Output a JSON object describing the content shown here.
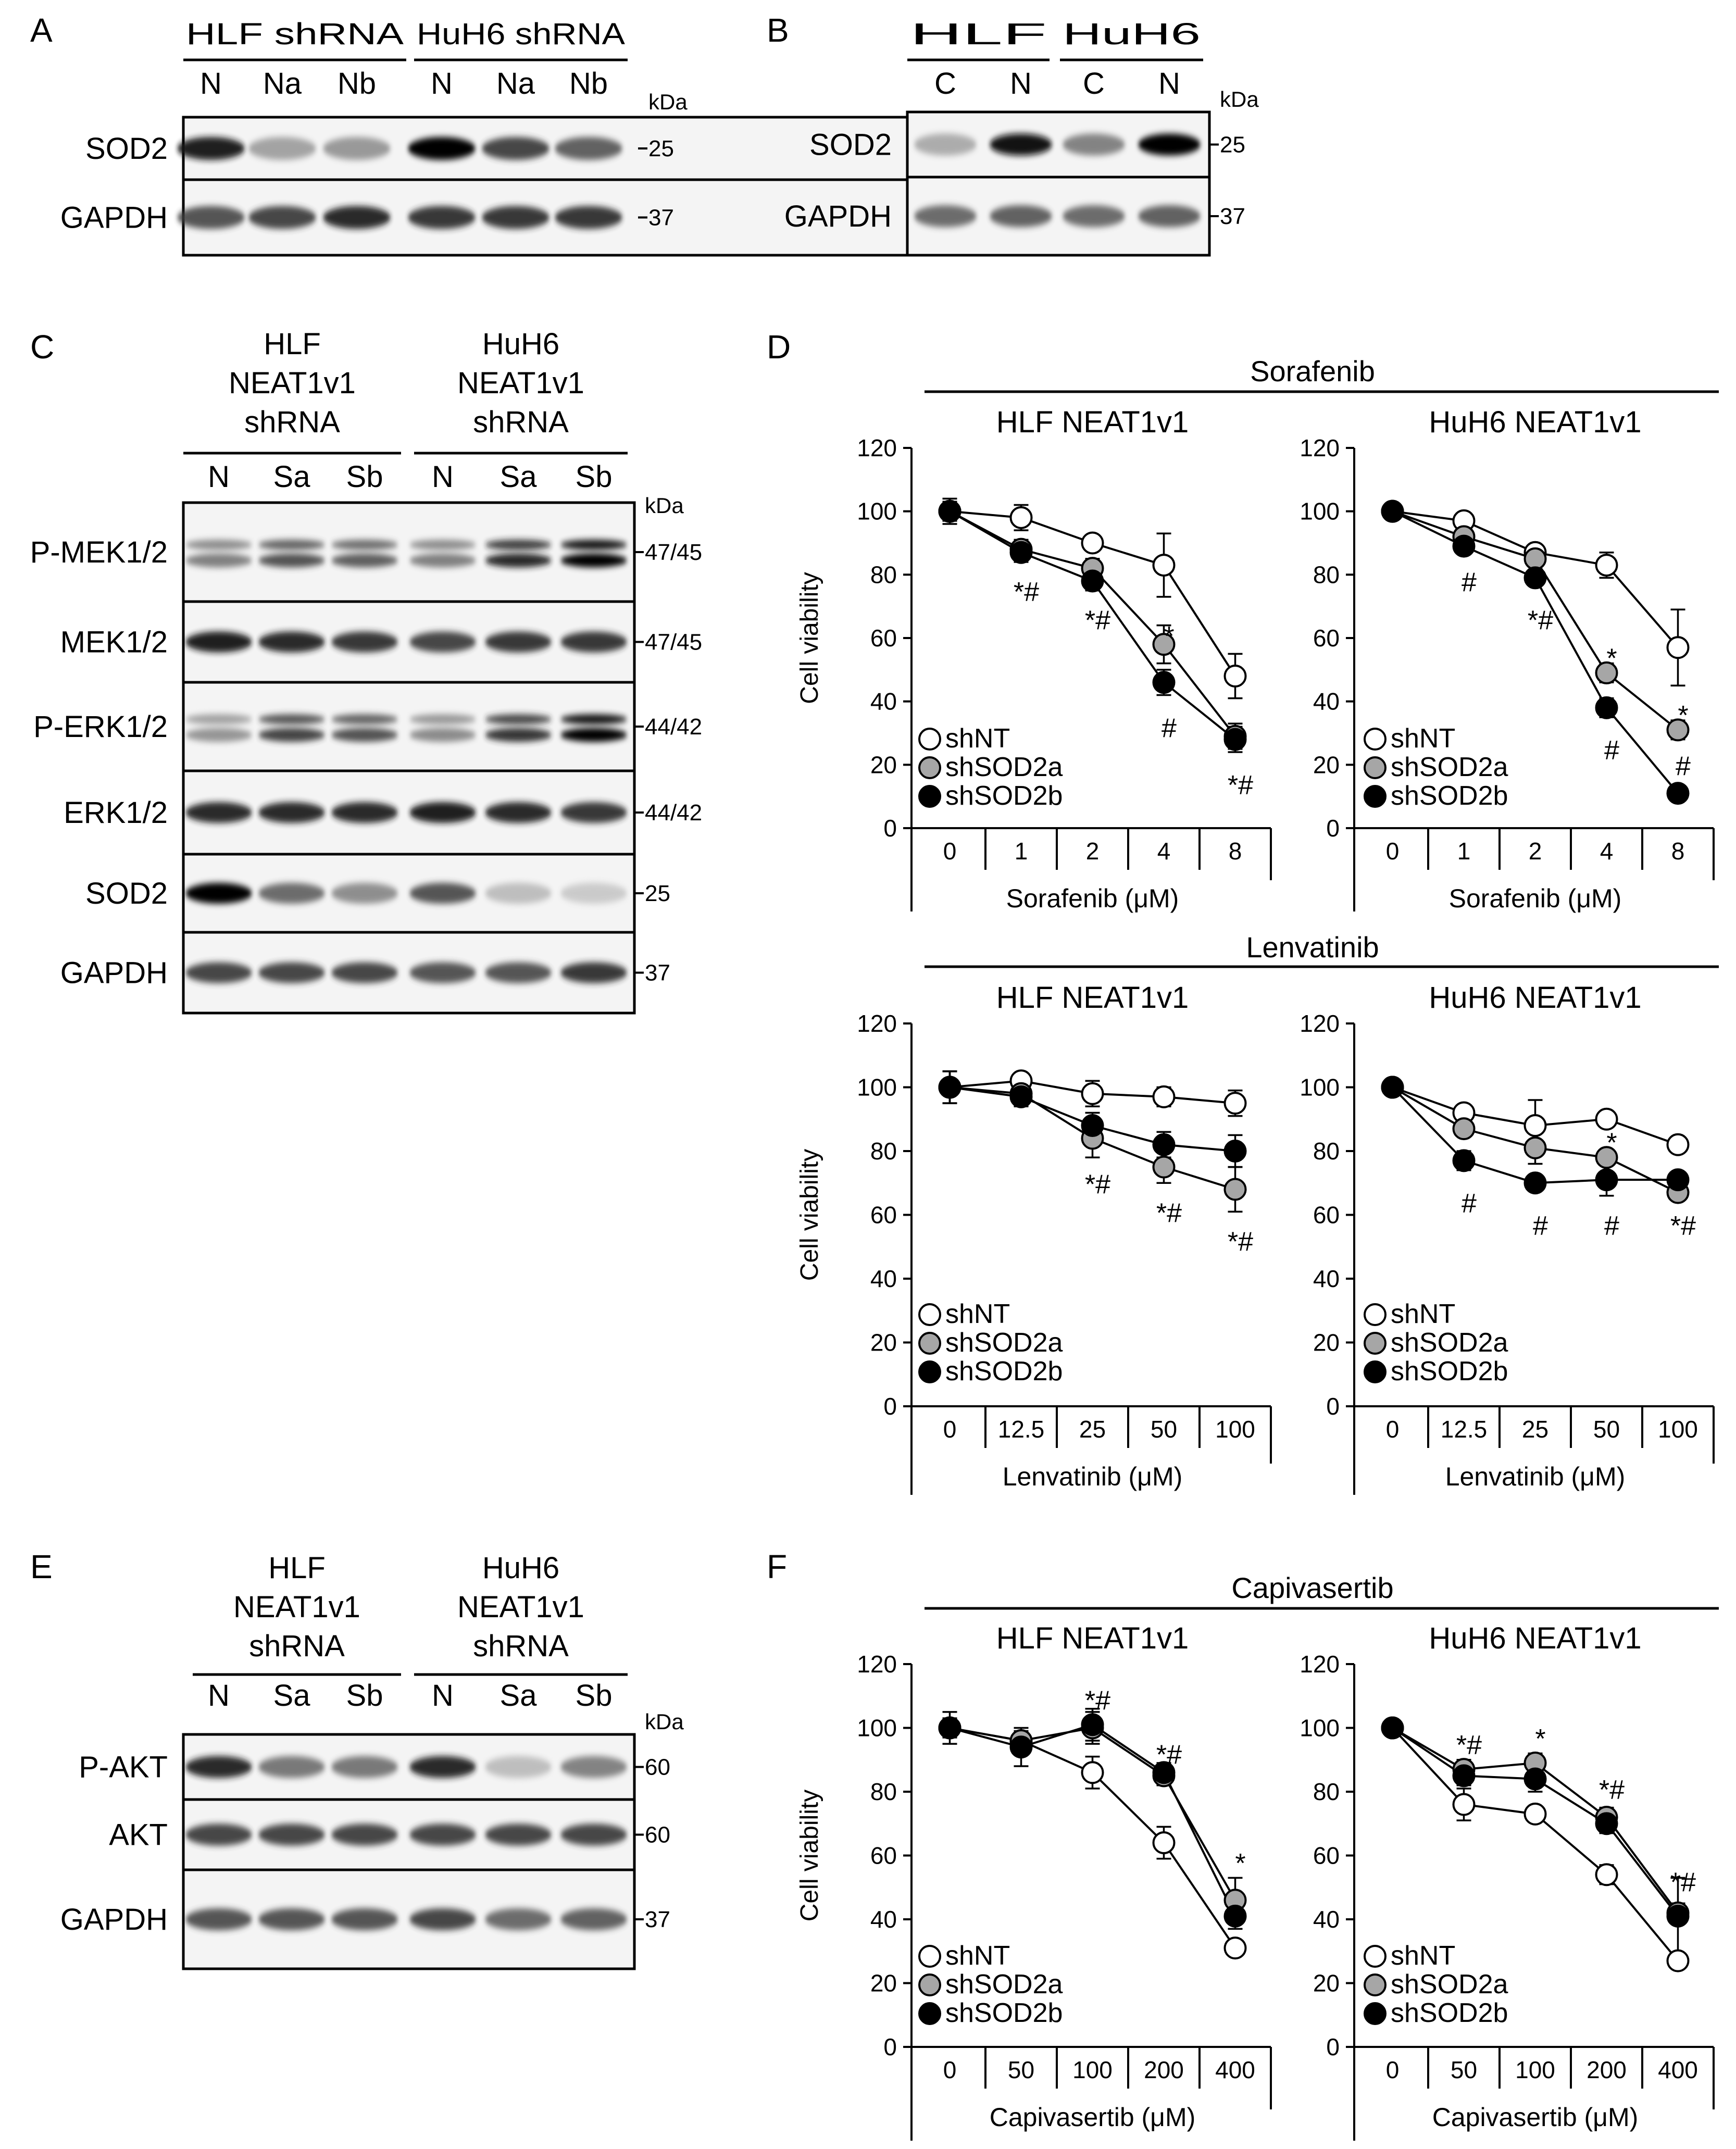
{
  "panels": {
    "A": {
      "letter": "A",
      "groups": [
        "HLF shRNA",
        "HuH6 shRNA"
      ],
      "lanes": [
        "N",
        "Na",
        "Nb",
        "N",
        "Na",
        "Nb"
      ],
      "kda_label": "kDa",
      "blots": [
        {
          "label": "SOD2",
          "kda": "25",
          "intensities": [
            0.9,
            0.35,
            0.4,
            1.0,
            0.75,
            0.65
          ]
        },
        {
          "label": "GAPDH",
          "kda": "37",
          "intensities": [
            0.7,
            0.75,
            0.85,
            0.8,
            0.8,
            0.8
          ]
        }
      ]
    },
    "B": {
      "letter": "B",
      "groups": [
        "HLF",
        "HuH6"
      ],
      "lanes": [
        "C",
        "N",
        "C",
        "N"
      ],
      "kda_label": "kDa",
      "blots": [
        {
          "label": "SOD2",
          "kda": "25",
          "intensities": [
            0.3,
            0.95,
            0.5,
            1.0
          ]
        },
        {
          "label": "GAPDH",
          "kda": "37",
          "intensities": [
            0.6,
            0.65,
            0.6,
            0.65
          ]
        }
      ]
    },
    "C": {
      "letter": "C",
      "groups": [
        [
          "HLF",
          "NEAT1v1",
          "shRNA"
        ],
        [
          "HuH6",
          "NEAT1v1",
          "shRNA"
        ]
      ],
      "lanes": [
        "N",
        "Sa",
        "Sb",
        "N",
        "Sa",
        "Sb"
      ],
      "kda_label": "kDa",
      "blots": [
        {
          "label": "P-MEK1/2",
          "kda": "47/45",
          "intensities": [
            0.5,
            0.7,
            0.65,
            0.5,
            0.85,
            1.0
          ]
        },
        {
          "label": "MEK1/2",
          "kda": "47/45",
          "intensities": [
            0.9,
            0.85,
            0.8,
            0.75,
            0.8,
            0.8
          ]
        },
        {
          "label": "P-ERK1/2",
          "kda": "44/42",
          "intensities": [
            0.4,
            0.75,
            0.7,
            0.45,
            0.8,
            1.0
          ]
        },
        {
          "label": "ERK1/2",
          "kda": "44/42",
          "intensities": [
            0.85,
            0.85,
            0.85,
            0.9,
            0.85,
            0.8
          ]
        },
        {
          "label": "SOD2",
          "kda": "25",
          "intensities": [
            1.0,
            0.6,
            0.45,
            0.7,
            0.2,
            0.12
          ]
        },
        {
          "label": "GAPDH",
          "kda": "37",
          "intensities": [
            0.75,
            0.75,
            0.75,
            0.7,
            0.7,
            0.8
          ]
        }
      ]
    },
    "E": {
      "letter": "E",
      "groups": [
        [
          "HLF",
          "NEAT1v1",
          "shRNA"
        ],
        [
          "HuH6",
          "NEAT1v1",
          "shRNA"
        ]
      ],
      "lanes": [
        "N",
        "Sa",
        "Sb",
        "N",
        "Sa",
        "Sb"
      ],
      "kda_label": "kDa",
      "blots": [
        {
          "label": "P-AKT",
          "kda": "60",
          "intensities": [
            0.85,
            0.55,
            0.55,
            0.85,
            0.2,
            0.5
          ]
        },
        {
          "label": "AKT",
          "kda": "60",
          "intensities": [
            0.75,
            0.75,
            0.75,
            0.75,
            0.75,
            0.75
          ]
        },
        {
          "label": "GAPDH",
          "kda": "37",
          "intensities": [
            0.7,
            0.7,
            0.7,
            0.75,
            0.6,
            0.65
          ]
        }
      ]
    },
    "D": {
      "letter": "D",
      "sorafenib_title": "Sorafenib",
      "lenvatinib_title": "Lenvatinib"
    },
    "F": {
      "letter": "F",
      "capivasertib_title": "Capivasertib"
    }
  },
  "chart_data": [
    {
      "type": "line",
      "panel": "D",
      "drug": "Sorafenib",
      "title": "HLF NEAT1v1",
      "categories": [
        "0",
        "1",
        "2",
        "4",
        "8"
      ],
      "xlabel": "Sorafenib (μM)",
      "ylabel": "Cell viability",
      "ylim": [
        0,
        120
      ],
      "yticks": [
        0,
        20,
        40,
        60,
        80,
        100,
        120
      ],
      "series": [
        {
          "name": "shNT",
          "values": [
            100,
            98,
            90,
            83,
            48
          ],
          "errors": [
            4,
            4,
            2,
            10,
            7
          ]
        },
        {
          "name": "shSOD2a",
          "values": [
            100,
            88,
            82,
            58,
            29
          ],
          "errors": [
            3,
            3,
            3,
            6,
            4
          ]
        },
        {
          "name": "shSOD2b",
          "values": [
            100,
            87,
            78,
            46,
            28
          ],
          "errors": [
            3,
            3,
            3,
            4,
            4
          ]
        }
      ],
      "annotations": [
        {
          "index": 1,
          "text": "*#",
          "y": 75
        },
        {
          "index": 2,
          "text": "*#",
          "y": 66
        },
        {
          "index": 3,
          "text": "*",
          "y": 61
        },
        {
          "index": 3,
          "text": "#",
          "y": 32
        },
        {
          "index": 4,
          "text": "*#",
          "y": 14
        }
      ]
    },
    {
      "type": "line",
      "panel": "D",
      "drug": "Sorafenib",
      "title": "HuH6 NEAT1v1",
      "categories": [
        "0",
        "1",
        "2",
        "4",
        "8"
      ],
      "xlabel": "Sorafenib (μM)",
      "ylabel": "",
      "ylim": [
        0,
        120
      ],
      "yticks": [
        0,
        20,
        40,
        60,
        80,
        100,
        120
      ],
      "series": [
        {
          "name": "shNT",
          "values": [
            100,
            97,
            87,
            83,
            57
          ],
          "errors": [
            2,
            2,
            2,
            4,
            12
          ]
        },
        {
          "name": "shSOD2a",
          "values": [
            100,
            92,
            85,
            49,
            31
          ],
          "errors": [
            2,
            2,
            2,
            3,
            3
          ]
        },
        {
          "name": "shSOD2b",
          "values": [
            100,
            89,
            79,
            38,
            11
          ],
          "errors": [
            2,
            2,
            2,
            3,
            2
          ]
        }
      ],
      "annotations": [
        {
          "index": 1,
          "text": "#",
          "y": 78
        },
        {
          "index": 2,
          "text": "*#",
          "y": 66
        },
        {
          "index": 3,
          "text": "*",
          "y": 54
        },
        {
          "index": 3,
          "text": "#",
          "y": 25
        },
        {
          "index": 4,
          "text": "*",
          "y": 36
        },
        {
          "index": 4,
          "text": "#",
          "y": 20
        }
      ]
    },
    {
      "type": "line",
      "panel": "D",
      "drug": "Lenvatinib",
      "title": "HLF NEAT1v1",
      "categories": [
        "0",
        "12.5",
        "25",
        "50",
        "100"
      ],
      "xlabel": "Lenvatinib (μM)",
      "ylabel": "Cell viability",
      "ylim": [
        0,
        120
      ],
      "yticks": [
        0,
        20,
        40,
        60,
        80,
        100,
        120
      ],
      "series": [
        {
          "name": "shNT",
          "values": [
            100,
            102,
            98,
            97,
            95
          ],
          "errors": [
            5,
            2,
            4,
            3,
            4
          ]
        },
        {
          "name": "shSOD2a",
          "values": [
            100,
            98,
            84,
            75,
            68
          ],
          "errors": [
            5,
            3,
            6,
            5,
            7
          ]
        },
        {
          "name": "shSOD2b",
          "values": [
            100,
            97,
            88,
            82,
            80
          ],
          "errors": [
            5,
            3,
            4,
            4,
            5
          ]
        }
      ],
      "annotations": [
        {
          "index": 2,
          "text": "*#",
          "y": 70
        },
        {
          "index": 3,
          "text": "*#",
          "y": 61
        },
        {
          "index": 4,
          "text": "*#",
          "y": 52
        }
      ]
    },
    {
      "type": "line",
      "panel": "D",
      "drug": "Lenvatinib",
      "title": "HuH6 NEAT1v1",
      "categories": [
        "0",
        "12.5",
        "25",
        "50",
        "100"
      ],
      "xlabel": "Lenvatinib (μM)",
      "ylabel": "",
      "ylim": [
        0,
        120
      ],
      "yticks": [
        0,
        20,
        40,
        60,
        80,
        100,
        120
      ],
      "series": [
        {
          "name": "shNT",
          "values": [
            100,
            92,
            88,
            90,
            82
          ],
          "errors": [
            2,
            2,
            8,
            2,
            2
          ]
        },
        {
          "name": "shSOD2a",
          "values": [
            100,
            87,
            81,
            78,
            67
          ],
          "errors": [
            2,
            2,
            5,
            2,
            2
          ]
        },
        {
          "name": "shSOD2b",
          "values": [
            100,
            77,
            70,
            71,
            71
          ],
          "errors": [
            2,
            3,
            2,
            5,
            2
          ]
        }
      ],
      "annotations": [
        {
          "index": 1,
          "text": "#",
          "y": 64
        },
        {
          "index": 2,
          "text": "#",
          "y": 57
        },
        {
          "index": 3,
          "text": "*",
          "y": 83
        },
        {
          "index": 3,
          "text": "#",
          "y": 57
        },
        {
          "index": 4,
          "text": "*#",
          "y": 57
        }
      ]
    },
    {
      "type": "line",
      "panel": "F",
      "drug": "Capivasertib",
      "title": "HLF NEAT1v1",
      "categories": [
        "0",
        "50",
        "100",
        "200",
        "400"
      ],
      "xlabel": "Capivasertib (μM)",
      "ylabel": "Cell viability",
      "ylim": [
        0,
        120
      ],
      "yticks": [
        0,
        20,
        40,
        60,
        80,
        100,
        120
      ],
      "series": [
        {
          "name": "shNT",
          "values": [
            100,
            96,
            86,
            64,
            31
          ],
          "errors": [
            3,
            3,
            5,
            5,
            2
          ]
        },
        {
          "name": "shSOD2a",
          "values": [
            100,
            96,
            100,
            85,
            46
          ],
          "errors": [
            3,
            3,
            5,
            3,
            7
          ]
        },
        {
          "name": "shSOD2b",
          "values": [
            100,
            94,
            101,
            86,
            41
          ],
          "errors": [
            5,
            6,
            5,
            3,
            4
          ]
        }
      ],
      "annotations": [
        {
          "index": 2,
          "text": "*#",
          "y": 109
        },
        {
          "index": 3,
          "text": "*#",
          "y": 92
        },
        {
          "index": 4,
          "text": "*",
          "y": 58
        }
      ]
    },
    {
      "type": "line",
      "panel": "F",
      "drug": "Capivasertib",
      "title": "HuH6 NEAT1v1",
      "categories": [
        "0",
        "50",
        "100",
        "200",
        "400"
      ],
      "xlabel": "Capivasertib (μM)",
      "ylabel": "",
      "ylim": [
        0,
        120
      ],
      "yticks": [
        0,
        20,
        40,
        60,
        80,
        100,
        120
      ],
      "series": [
        {
          "name": "shNT",
          "values": [
            100,
            76,
            73,
            54,
            27
          ],
          "errors": [
            2,
            5,
            2,
            3,
            2
          ]
        },
        {
          "name": "shSOD2a",
          "values": [
            100,
            87,
            89,
            72,
            42
          ],
          "errors": [
            2,
            3,
            3,
            3,
            3
          ]
        },
        {
          "name": "shSOD2b",
          "values": [
            100,
            85,
            84,
            70,
            41
          ],
          "errors": [
            2,
            3,
            4,
            3,
            12
          ]
        }
      ],
      "annotations": [
        {
          "index": 1,
          "text": "*#",
          "y": 95
        },
        {
          "index": 2,
          "text": "*",
          "y": 97
        },
        {
          "index": 3,
          "text": "*#",
          "y": 81
        },
        {
          "index": 4,
          "text": "*#",
          "y": 52
        }
      ]
    }
  ]
}
